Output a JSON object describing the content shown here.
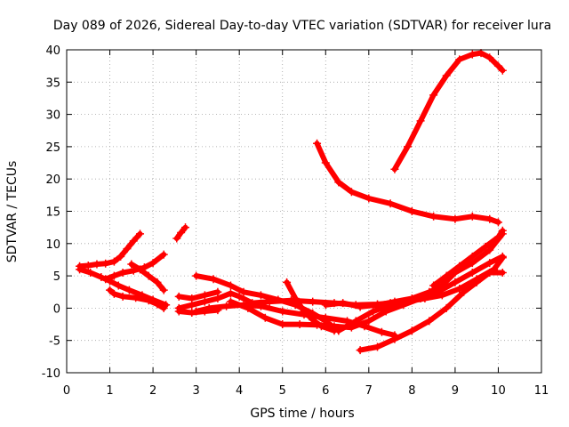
{
  "chart_data": {
    "type": "scatter",
    "title": "Day 089 of 2026, Sidereal Day-to-day VTEC variation (SDTVAR) for receiver lura",
    "xlabel": "GPS time / hours",
    "ylabel": "SDTVAR / TECUs",
    "xlim": [
      0,
      11
    ],
    "ylim": [
      -10,
      40
    ],
    "xticks": [
      "0",
      "1",
      "2",
      "3",
      "4",
      "5",
      "6",
      "7",
      "8",
      "9",
      "10",
      "11"
    ],
    "yticks": [
      "-10",
      "-5",
      "0",
      "5",
      "10",
      "15",
      "20",
      "25",
      "30",
      "35",
      "40"
    ],
    "grid": true,
    "legend": "none",
    "color": "#ff0000",
    "series": [
      {
        "x": [
          0.3,
          0.5,
          0.7,
          0.9,
          1.1,
          1.25,
          1.4,
          1.55,
          1.7
        ],
        "y": [
          6.5,
          6.6,
          6.8,
          6.9,
          7.2,
          8.0,
          9.2,
          10.4,
          11.5
        ]
      },
      {
        "x": [
          0.3,
          0.55,
          0.8,
          1.0,
          1.2,
          1.45,
          1.75,
          2.0,
          2.3
        ],
        "y": [
          6.0,
          5.5,
          4.8,
          4.2,
          3.5,
          2.8,
          2.0,
          1.3,
          0.5
        ]
      },
      {
        "x": [
          0.9,
          1.1,
          1.3,
          1.55,
          1.8,
          2.0,
          2.25
        ],
        "y": [
          4.5,
          5.0,
          5.5,
          5.8,
          6.3,
          7.0,
          8.3
        ]
      },
      {
        "x": [
          1.0,
          1.1,
          1.3,
          1.6,
          1.9,
          2.1,
          2.25
        ],
        "y": [
          2.8,
          2.2,
          1.8,
          1.6,
          1.2,
          0.6,
          0.0
        ]
      },
      {
        "x": [
          1.5,
          1.7,
          1.9,
          2.1,
          2.25
        ],
        "y": [
          6.8,
          6.0,
          5.0,
          4.0,
          2.8
        ]
      },
      {
        "x": [
          2.55,
          2.65,
          2.75
        ],
        "y": [
          10.8,
          11.7,
          12.5
        ]
      },
      {
        "x": [
          2.6,
          2.9,
          3.2,
          3.5,
          3.8,
          4.0,
          4.3,
          4.7,
          5.2,
          5.7,
          6.2,
          6.7,
          7.2,
          7.5
        ],
        "y": [
          0.0,
          0.5,
          1.0,
          1.5,
          2.3,
          1.8,
          0.8,
          1.0,
          1.2,
          1.0,
          0.8,
          0.5,
          0.6,
          0.8
        ]
      },
      {
        "x": [
          2.6,
          2.9,
          3.2,
          3.5
        ],
        "y": [
          1.8,
          1.5,
          2.0,
          2.5
        ]
      },
      {
        "x": [
          2.6,
          2.9,
          3.2,
          3.5
        ],
        "y": [
          -0.5,
          -0.7,
          -0.5,
          -0.3
        ]
      },
      {
        "x": [
          3.0,
          3.4,
          3.8,
          4.1,
          4.5,
          4.9,
          5.3,
          5.7,
          6.0,
          6.3
        ],
        "y": [
          5.0,
          4.5,
          3.5,
          2.5,
          2.0,
          1.3,
          0.5,
          -0.8,
          -2.0,
          -3.5
        ]
      },
      {
        "x": [
          3.0,
          3.3,
          3.7,
          4.1,
          4.5,
          5.0,
          5.5,
          6.0,
          6.5,
          6.9,
          7.3,
          7.6
        ],
        "y": [
          -0.5,
          0.0,
          0.3,
          0.5,
          0.3,
          -0.5,
          -1.0,
          -1.5,
          -2.0,
          -2.8,
          -3.7,
          -4.2
        ]
      },
      {
        "x": [
          3.8,
          4.2,
          4.6,
          5.0,
          5.4,
          5.8,
          6.2,
          6.6,
          7.0,
          7.4,
          7.8,
          8.2,
          8.6,
          9.0,
          9.4,
          9.8,
          10.1
        ],
        "y": [
          1.0,
          0.0,
          -1.5,
          -2.5,
          -2.5,
          -2.6,
          -2.8,
          -3.0,
          -2.0,
          -0.5,
          0.5,
          1.5,
          2.5,
          4.0,
          5.5,
          7.0,
          8.0
        ]
      },
      {
        "x": [
          5.1,
          5.3,
          5.5,
          5.7,
          5.9,
          6.2
        ],
        "y": [
          4.0,
          1.5,
          -0.5,
          -1.8,
          -2.8,
          -3.5
        ]
      },
      {
        "x": [
          5.8,
          6.0,
          6.3,
          6.6,
          7.0,
          7.5,
          8.0,
          8.5,
          9.0,
          9.4,
          9.8,
          10.0
        ],
        "y": [
          25.5,
          22.5,
          19.5,
          18.0,
          17.0,
          16.2,
          15.0,
          14.2,
          13.8,
          14.2,
          13.8,
          13.3
        ]
      },
      {
        "x": [
          6.0,
          6.4,
          6.8,
          7.2,
          7.6,
          8.0,
          8.4,
          8.7,
          9.0,
          9.4,
          9.8,
          10.1
        ],
        "y": [
          0.5,
          0.8,
          0.2,
          0.5,
          1.0,
          1.5,
          2.5,
          3.5,
          5.5,
          7.0,
          9.0,
          11.5
        ]
      },
      {
        "x": [
          6.3,
          6.7,
          7.1,
          7.5,
          7.9,
          8.3,
          8.7,
          9.1,
          9.5,
          9.9,
          10.1
        ],
        "y": [
          -3.5,
          -2.0,
          -0.5,
          0.5,
          1.0,
          1.5,
          2.0,
          3.0,
          4.5,
          6.0,
          7.8
        ]
      },
      {
        "x": [
          6.8,
          7.2,
          7.6,
          8.0,
          8.4,
          8.8,
          9.2,
          9.5,
          9.8,
          10.1
        ],
        "y": [
          -6.5,
          -6.0,
          -4.8,
          -3.5,
          -2.0,
          0.0,
          2.5,
          4.0,
          5.5,
          5.5
        ]
      },
      {
        "x": [
          7.6,
          7.9,
          8.2,
          8.5,
          8.8,
          9.1,
          9.4,
          9.6,
          9.8,
          10.0,
          10.1
        ],
        "y": [
          21.5,
          25.0,
          29.0,
          33.0,
          36.0,
          38.5,
          39.3,
          39.5,
          38.8,
          37.5,
          36.8
        ]
      },
      {
        "x": [
          8.5,
          8.8,
          9.1,
          9.4,
          9.7,
          10.0,
          10.1
        ],
        "y": [
          3.5,
          5.0,
          6.5,
          8.0,
          9.5,
          11.0,
          12.0
        ]
      }
    ]
  }
}
